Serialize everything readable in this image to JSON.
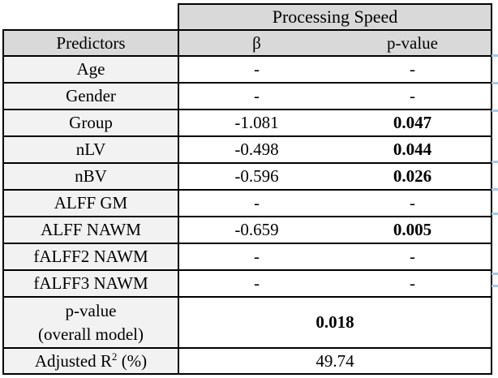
{
  "table": {
    "title": "Processing Speed",
    "header": {
      "predictors": "Predictors",
      "beta": "β",
      "p_value": "p-value"
    },
    "rows": [
      {
        "predictor": "Age",
        "beta": "-",
        "p": "-"
      },
      {
        "predictor": "Gender",
        "beta": "-",
        "p": "-"
      },
      {
        "predictor": "Group",
        "beta": "-1.081",
        "p": "0.047"
      },
      {
        "predictor": "nLV",
        "beta": "-0.498",
        "p": "0.044"
      },
      {
        "predictor": "nBV",
        "beta": "-0.596",
        "p": "0.026"
      },
      {
        "predictor": "ALFF GM",
        "beta": "-",
        "p": "-"
      },
      {
        "predictor": "ALFF NAWM",
        "beta": "-0.659",
        "p": "0.005"
      },
      {
        "predictor": "fALFF2 NAWM",
        "beta": "-",
        "p": "-"
      },
      {
        "predictor": "fALFF3 NAWM",
        "beta": "-",
        "p": "-"
      }
    ],
    "summary": {
      "overall_model": {
        "label_line1": "p-value",
        "label_line2": "(overall model)",
        "value": "0.018"
      },
      "adjusted_r2": {
        "label_prefix": "Adjusted R",
        "label_sup": "2",
        "label_suffix": " (%)",
        "value": "49.74"
      }
    }
  },
  "colors": {
    "header_fill": "#d9d9d9",
    "predictor_column_fill": "#f2f2f2",
    "border": "#000000",
    "edge_mark": "#a7c7e7"
  },
  "decorations": {
    "right_edge_marks_y": [
      67,
      101,
      135,
      198,
      232,
      262,
      336,
      351
    ]
  }
}
